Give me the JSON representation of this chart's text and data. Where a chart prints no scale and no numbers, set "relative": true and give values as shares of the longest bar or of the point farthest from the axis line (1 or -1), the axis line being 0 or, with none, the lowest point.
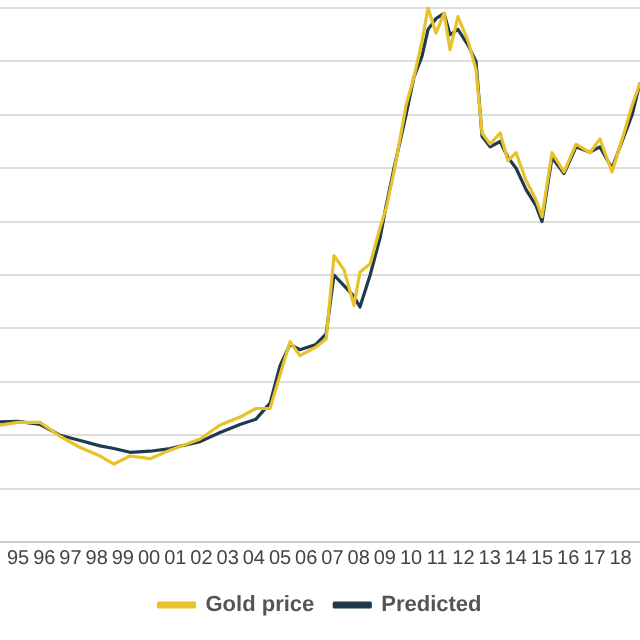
{
  "chart_data": {
    "type": "line",
    "relative": true,
    "grid": "y",
    "legend": "bottom",
    "marker": "none",
    "line_style": "solid",
    "xlim": [
      1994.31,
      2018.74
    ],
    "xticks": [
      {
        "value": 1995,
        "label": "95"
      },
      {
        "value": 1996,
        "label": "96"
      },
      {
        "value": 1997,
        "label": "97"
      },
      {
        "value": 1998,
        "label": "98"
      },
      {
        "value": 1999,
        "label": "99"
      },
      {
        "value": 2000,
        "label": "00"
      },
      {
        "value": 2001,
        "label": "01"
      },
      {
        "value": 2002,
        "label": "02"
      },
      {
        "value": 2003,
        "label": "03"
      },
      {
        "value": 2004,
        "label": "04"
      },
      {
        "value": 2005,
        "label": "05"
      },
      {
        "value": 2006,
        "label": "06"
      },
      {
        "value": 2007,
        "label": "07"
      },
      {
        "value": 2008,
        "label": "08"
      },
      {
        "value": 2009,
        "label": "09"
      },
      {
        "value": 2010,
        "label": "10"
      },
      {
        "value": 2011,
        "label": "11"
      },
      {
        "value": 2012,
        "label": "12"
      },
      {
        "value": 2013,
        "label": "13"
      },
      {
        "value": 2014,
        "label": "14"
      },
      {
        "value": 2015,
        "label": "15"
      },
      {
        "value": 2016,
        "label": "16"
      },
      {
        "value": 2017,
        "label": "17"
      },
      {
        "value": 2018,
        "label": "18"
      }
    ],
    "x": [
      1994.31,
      1995.0,
      1995.84,
      1996.6,
      1997.37,
      1998.13,
      1998.66,
      1999.27,
      2000.04,
      2000.8,
      2001.95,
      2002.71,
      2003.47,
      2004.08,
      2004.62,
      2005.0,
      2005.38,
      2005.76,
      2006.37,
      2006.76,
      2007.06,
      2007.44,
      2007.82,
      2008.05,
      2008.44,
      2008.82,
      2009.05,
      2009.35,
      2009.81,
      2010.11,
      2010.42,
      2010.65,
      2010.95,
      2011.26,
      2011.49,
      2011.79,
      2012.18,
      2012.48,
      2012.71,
      2013.02,
      2013.4,
      2013.7,
      2014.01,
      2014.39,
      2014.77,
      2015.0,
      2015.38,
      2015.84,
      2016.3,
      2016.83,
      2017.21,
      2017.67,
      2018.13,
      2018.44,
      2018.74
    ],
    "series": [
      {
        "name": "Gold price",
        "color": "#e8c22a",
        "values": [
          0.219,
          0.224,
          0.224,
          0.198,
          0.177,
          0.161,
          0.146,
          0.161,
          0.156,
          0.172,
          0.193,
          0.219,
          0.234,
          0.25,
          0.25,
          0.313,
          0.375,
          0.349,
          0.365,
          0.38,
          0.536,
          0.51,
          0.443,
          0.505,
          0.521,
          0.589,
          0.625,
          0.693,
          0.818,
          0.87,
          0.938,
          1.0,
          0.953,
          0.99,
          0.922,
          0.984,
          0.938,
          0.885,
          0.766,
          0.745,
          0.766,
          0.714,
          0.729,
          0.677,
          0.641,
          0.609,
          0.729,
          0.693,
          0.745,
          0.729,
          0.755,
          0.693,
          0.766,
          0.818,
          0.859
        ]
      },
      {
        "name": "Predicted",
        "color": "#1f3a4d",
        "values": [
          0.225,
          0.226,
          0.22,
          0.2,
          0.19,
          0.18,
          0.175,
          0.168,
          0.17,
          0.175,
          0.188,
          0.205,
          0.22,
          0.23,
          0.26,
          0.33,
          0.37,
          0.36,
          0.37,
          0.39,
          0.5,
          0.48,
          0.46,
          0.44,
          0.5,
          0.57,
          0.63,
          0.7,
          0.8,
          0.87,
          0.91,
          0.96,
          0.98,
          0.99,
          0.95,
          0.96,
          0.93,
          0.9,
          0.76,
          0.74,
          0.75,
          0.72,
          0.7,
          0.66,
          0.63,
          0.6,
          0.72,
          0.69,
          0.74,
          0.73,
          0.74,
          0.7,
          0.76,
          0.8,
          0.86
        ]
      }
    ]
  }
}
